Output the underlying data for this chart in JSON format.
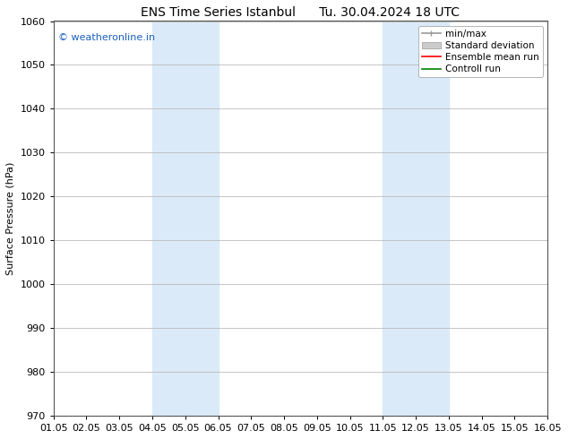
{
  "title_left": "ENS Time Series Istanbul",
  "title_right": "Tu. 30.04.2024 18 UTC",
  "ylabel": "Surface Pressure (hPa)",
  "ylim": [
    970,
    1060
  ],
  "yticks": [
    970,
    980,
    990,
    1000,
    1010,
    1020,
    1030,
    1040,
    1050,
    1060
  ],
  "xtick_labels": [
    "01.05",
    "02.05",
    "03.05",
    "04.05",
    "05.05",
    "06.05",
    "07.05",
    "08.05",
    "09.05",
    "10.05",
    "11.05",
    "12.05",
    "13.05",
    "14.05",
    "15.05",
    "16.05"
  ],
  "xlim_start": 0,
  "xlim_end": 15,
  "shaded_bands": [
    {
      "x_start": 3,
      "x_end": 5,
      "color": "#daeaf8"
    },
    {
      "x_start": 10,
      "x_end": 12,
      "color": "#daeaf8"
    }
  ],
  "background_color": "#ffffff",
  "grid_color": "#bbbbbb",
  "watermark_text": "© weatheronline.in",
  "watermark_color": "#1a5fbc",
  "legend_labels": [
    "min/max",
    "Standard deviation",
    "Ensemble mean run",
    "Controll run"
  ],
  "legend_colors": [
    "#999999",
    "#cccccc",
    "#ff0000",
    "#008000"
  ],
  "title_fontsize": 10,
  "axis_fontsize": 8,
  "ylabel_fontsize": 8
}
